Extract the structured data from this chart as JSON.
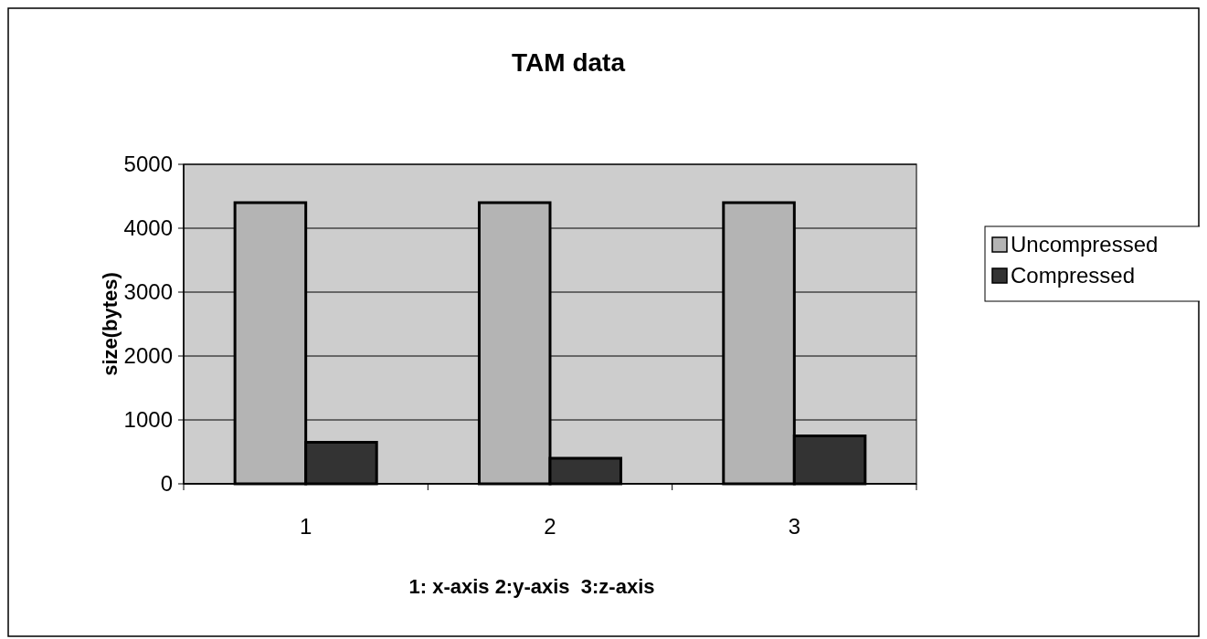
{
  "chart_data": {
    "type": "bar",
    "title": "TAM data",
    "xlabel": "1: x-axis 2:y-axis  3:z-axis",
    "ylabel": "size(bytes)",
    "categories": [
      "1",
      "2",
      "3"
    ],
    "series": [
      {
        "name": "Uncompressed",
        "color": "#b4b4b4",
        "values": [
          4400,
          4400,
          4400
        ]
      },
      {
        "name": "Compressed",
        "color": "#333333",
        "values": [
          650,
          400,
          750
        ]
      }
    ],
    "ylim": [
      0,
      5000
    ],
    "yticks": [
      0,
      1000,
      2000,
      3000,
      4000,
      5000
    ],
    "grid": "y",
    "legend": "right"
  }
}
